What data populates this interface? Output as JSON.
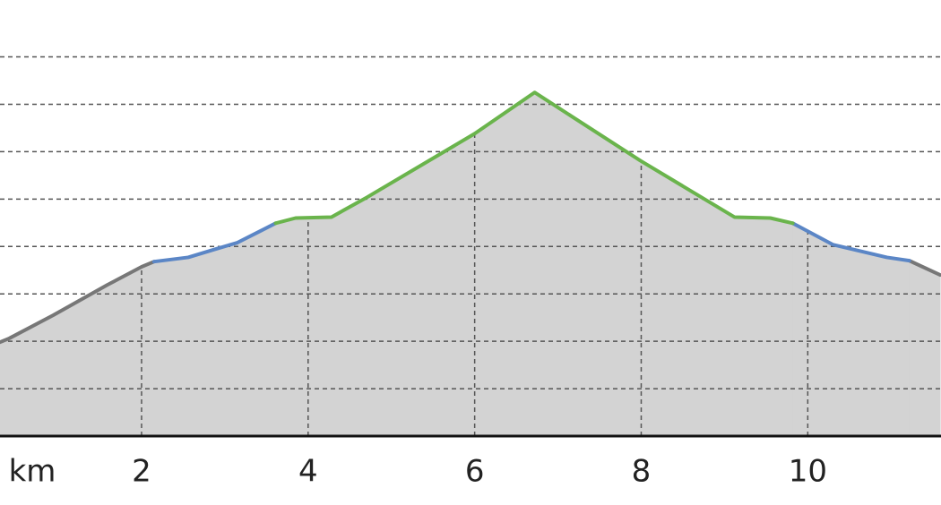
{
  "chart_data": {
    "type": "area-line",
    "x_label": "km",
    "x": [
      0.3,
      0.41,
      0.94,
      1.59,
      2.0,
      2.15,
      2.56,
      2.88,
      3.15,
      3.42,
      3.61,
      3.85,
      4.28,
      4.71,
      6.0,
      6.72,
      7.99,
      9.12,
      9.55,
      9.82,
      10.3,
      10.95,
      11.22,
      11.59
    ],
    "series": [
      {
        "color": "#777777",
        "values": [
          1.98,
          2.06,
          2.55,
          3.19,
          3.57,
          3.68,
          null,
          null,
          null,
          null,
          null,
          null,
          null,
          null,
          null,
          null,
          null,
          null,
          null,
          null,
          null,
          null,
          3.7,
          3.4
        ]
      },
      {
        "color": "#5b86c6",
        "values": [
          null,
          null,
          null,
          null,
          null,
          3.68,
          3.77,
          3.94,
          4.08,
          4.32,
          4.49,
          null,
          null,
          null,
          null,
          null,
          null,
          null,
          null,
          4.49,
          4.04,
          3.77,
          3.7,
          null
        ]
      },
      {
        "color": "#6ab44c",
        "values": [
          null,
          null,
          null,
          null,
          null,
          null,
          null,
          null,
          null,
          null,
          4.49,
          4.6,
          4.62,
          5.04,
          6.38,
          7.25,
          5.81,
          4.62,
          4.6,
          4.49,
          null,
          null,
          null,
          null
        ]
      }
    ],
    "area_color": "#d3d3d3",
    "xlim": [
      0.3,
      11.6
    ],
    "ylim": [
      0,
      9.2
    ],
    "xticks": [
      2,
      4,
      6,
      8,
      10
    ],
    "yticks": [
      1,
      2,
      3,
      4,
      5,
      6,
      7,
      8
    ],
    "grid": true
  }
}
